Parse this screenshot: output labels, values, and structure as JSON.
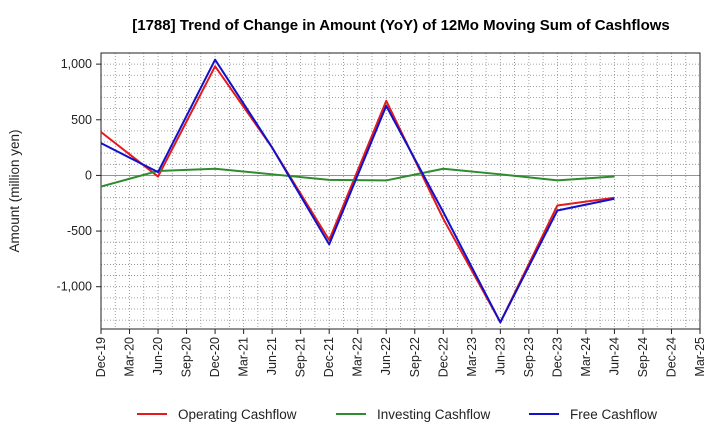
{
  "chart_data": {
    "type": "line",
    "title": "[1788]  Trend of Change in Amount (YoY) of 12Mo Moving Sum of Cashflows",
    "ylabel": "Amount (million yen)",
    "xlabel": "",
    "ylim": [
      -1380,
      1100
    ],
    "yticks": [
      1000,
      500,
      0,
      -500,
      -1000
    ],
    "ytick_labels": [
      "1,000",
      "500",
      "0",
      "-500",
      "-1,000"
    ],
    "categories": [
      "Dec-19",
      "Mar-20",
      "Jun-20",
      "Sep-20",
      "Dec-20",
      "Mar-21",
      "Jun-21",
      "Sep-21",
      "Dec-21",
      "Mar-22",
      "Jun-22",
      "Sep-22",
      "Dec-22",
      "Mar-23",
      "Jun-23",
      "Sep-23",
      "Dec-23",
      "Mar-24",
      "Jun-24",
      "Sep-24",
      "Dec-24",
      "Mar-25"
    ],
    "series": [
      {
        "name": "Operating Cashflow",
        "color": "#e41a1c",
        "values": [
          390,
          null,
          -10,
          null,
          980,
          null,
          250,
          null,
          -580,
          null,
          670,
          null,
          -390,
          null,
          -1320,
          null,
          -270,
          null,
          -200,
          null,
          null,
          null
        ]
      },
      {
        "name": "Investing Cashflow",
        "color": "#2e8b2e",
        "values": [
          -100,
          null,
          40,
          null,
          60,
          null,
          10,
          null,
          -40,
          null,
          -45,
          null,
          60,
          null,
          10,
          null,
          -45,
          null,
          -10,
          null,
          null,
          null
        ]
      },
      {
        "name": "Free Cashflow",
        "color": "#1111cc",
        "values": [
          290,
          null,
          30,
          null,
          1040,
          null,
          250,
          null,
          -620,
          null,
          625,
          null,
          -330,
          null,
          -1320,
          null,
          -315,
          null,
          -210,
          null,
          null,
          null
        ]
      }
    ],
    "grid": true,
    "legend_position": "bottom"
  }
}
